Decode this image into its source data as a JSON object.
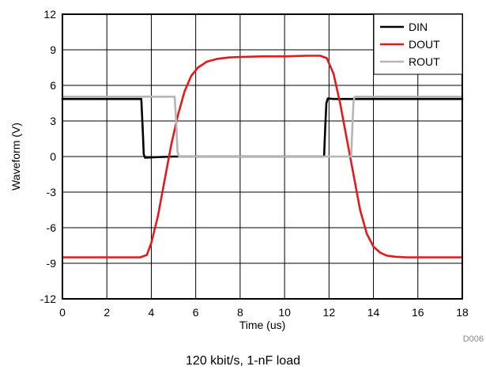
{
  "caption": "120 kbit/s, 1-nF load",
  "figure_code": "D006",
  "chart_data": {
    "type": "line",
    "title": "",
    "xlabel": "Time (us)",
    "ylabel": "Waveform (V)",
    "xlim": [
      0,
      18
    ],
    "ylim": [
      -12,
      12
    ],
    "xticks": [
      0,
      2,
      4,
      6,
      8,
      10,
      12,
      14,
      16,
      18
    ],
    "yticks": [
      -12,
      -9,
      -6,
      -3,
      0,
      3,
      6,
      9,
      12
    ],
    "grid": true,
    "legend_position": "top-right",
    "series": [
      {
        "name": "DIN",
        "color": "#000000",
        "x": [
          0,
          3.55,
          3.62,
          3.66,
          3.72,
          4.2,
          5.0,
          11.78,
          11.83,
          11.88,
          11.95,
          12.2,
          14,
          18
        ],
        "y": [
          4.85,
          4.85,
          2.0,
          0.2,
          -0.1,
          -0.05,
          0.0,
          0.0,
          2.5,
          4.5,
          4.9,
          4.85,
          4.85,
          4.85
        ]
      },
      {
        "name": "DOUT",
        "color": "#e31a1c",
        "x": [
          0,
          3.5,
          3.8,
          4.0,
          4.3,
          4.6,
          4.9,
          5.2,
          5.5,
          5.8,
          6.1,
          6.5,
          7.0,
          7.5,
          8.0,
          9.0,
          10.0,
          11.0,
          11.6,
          11.9,
          12.2,
          12.5,
          12.8,
          13.1,
          13.4,
          13.7,
          14.0,
          14.3,
          14.6,
          15.0,
          15.5,
          16.0,
          18
        ],
        "y": [
          -8.5,
          -8.5,
          -8.3,
          -7.3,
          -5.0,
          -2.0,
          1.0,
          3.5,
          5.5,
          6.8,
          7.5,
          8.0,
          8.25,
          8.35,
          8.4,
          8.45,
          8.45,
          8.5,
          8.5,
          8.3,
          7.0,
          4.5,
          1.5,
          -1.5,
          -4.5,
          -6.5,
          -7.6,
          -8.1,
          -8.35,
          -8.45,
          -8.5,
          -8.5,
          -8.5
        ]
      },
      {
        "name": "ROUT",
        "color": "#b5b5b5",
        "x": [
          0,
          5.05,
          5.12,
          5.18,
          5.25,
          6.0,
          13.0,
          13.05,
          13.1,
          13.15,
          13.3,
          18
        ],
        "y": [
          5.05,
          5.05,
          3.0,
          0.4,
          0.0,
          0.0,
          0.0,
          2.5,
          4.6,
          5.05,
          5.05,
          5.05
        ]
      }
    ]
  }
}
